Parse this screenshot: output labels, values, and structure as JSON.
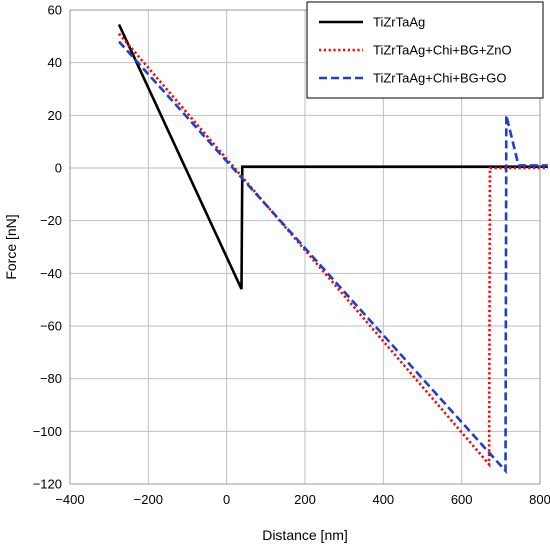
{
  "chart_data": {
    "type": "line",
    "title": "",
    "xlabel": "Distance [nm]",
    "ylabel": "Force [nN]",
    "xlim": [
      -400,
      800
    ],
    "ylim": [
      -120,
      60
    ],
    "xticks": [
      -400,
      -200,
      0,
      200,
      400,
      600,
      800
    ],
    "yticks": [
      -120,
      -100,
      -80,
      -60,
      -40,
      -20,
      0,
      20,
      40,
      60
    ],
    "xtick_labels": [
      "−400",
      "−200",
      "0",
      "200",
      "400",
      "600",
      "800"
    ],
    "ytick_labels": [
      "−120",
      "−100",
      "−80",
      "−60",
      "−40",
      "−20",
      "0",
      "20",
      "40",
      "60"
    ],
    "grid": true,
    "legend_position": "top-right",
    "series": [
      {
        "name": "TiZrTaAg",
        "color": "#000000",
        "style": "solid",
        "x": [
          -275,
          38,
          40,
          820
        ],
        "y": [
          54.5,
          -46,
          0.5,
          0.5
        ]
      },
      {
        "name": "TiZrTaAg+Chi+BG+ZnO",
        "color": "#ff0000",
        "style": "dotted",
        "x": [
          -275,
          670,
          672,
          820
        ],
        "y": [
          51,
          -112.5,
          0,
          0
        ]
      },
      {
        "name": "TiZrTaAg+Chi+BG+GO",
        "color": "#1f3fc8",
        "style": "dashed",
        "x": [
          -275,
          712,
          714,
          745,
          820
        ],
        "y": [
          48,
          -115,
          20,
          1,
          1
        ]
      }
    ]
  }
}
